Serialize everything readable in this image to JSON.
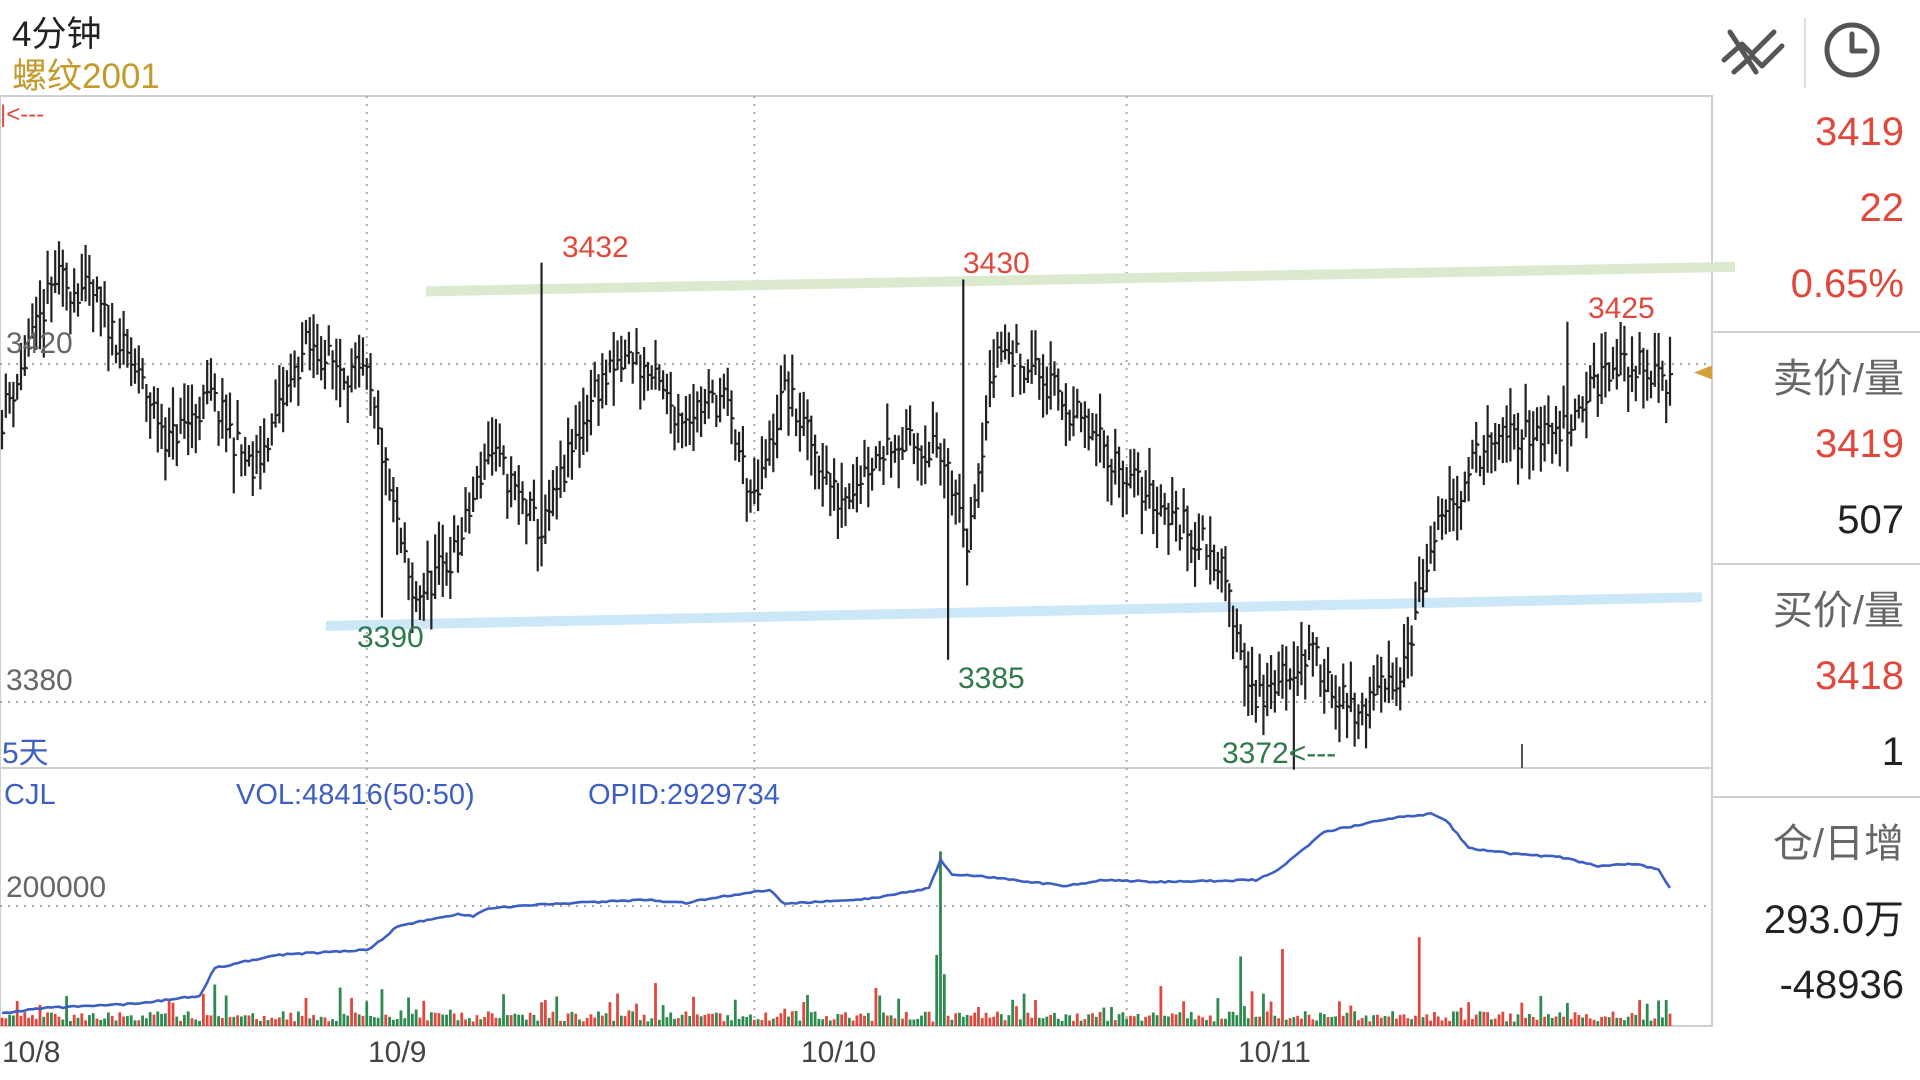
{
  "header": {
    "period": "4分钟",
    "symbol": "螺纹2001",
    "trend_icon": "trend-lines-icon",
    "clock_icon": "clock-icon"
  },
  "sidebar": {
    "last_price": "3419",
    "change": "22",
    "change_pct": "0.65%",
    "ask_label": "卖价/量",
    "ask_price": "3419",
    "ask_volume": "507",
    "bid_label": "买价/量",
    "bid_price": "3418",
    "bid_volume": "1",
    "oi_label": "仓/日增",
    "open_interest": "293.0万",
    "oi_change": "-48936"
  },
  "chart_data": {
    "type": "bar",
    "price_panel": {
      "y_ticks": [
        "3420",
        "3380"
      ],
      "range_label": "5天",
      "annotations": [
        {
          "text": "|<---",
          "value": 3432
        },
        {
          "text": "3432",
          "value": 3432,
          "kind": "high"
        },
        {
          "text": "3430",
          "value": 3430,
          "kind": "high"
        },
        {
          "text": "3425",
          "value": 3425,
          "kind": "high"
        },
        {
          "text": "3390",
          "value": 3390,
          "kind": "low"
        },
        {
          "text": "3385",
          "value": 3385,
          "kind": "low"
        },
        {
          "text": "3372<---",
          "value": 3372,
          "kind": "low"
        }
      ],
      "trendlines": [
        {
          "name": "resistance",
          "color": "#dbe9cf",
          "from": 3428.6,
          "to": 3431.5
        },
        {
          "name": "support",
          "color": "#cce7f7",
          "from": 3389.0,
          "to": 3392.4
        }
      ],
      "price_marker": {
        "value": 3419,
        "color": "#d4a03a"
      },
      "colors": {
        "bar": "#222222",
        "high_label": "#e0483d",
        "low_label": "#2f7a4a",
        "grid": "#a8a8a8"
      }
    },
    "volume_panel": {
      "indicator": "CJL",
      "vol_label": "VOL:48416(50:50)",
      "opid_label": "OPID:2929734",
      "y_ticks": [
        "200000"
      ],
      "colors": {
        "up": "#e0483d",
        "down": "#2d8a4e",
        "opi_line": "#3d5fc4"
      }
    },
    "x_labels": [
      "10/8",
      "10/9",
      "10/10",
      "10/11"
    ]
  }
}
